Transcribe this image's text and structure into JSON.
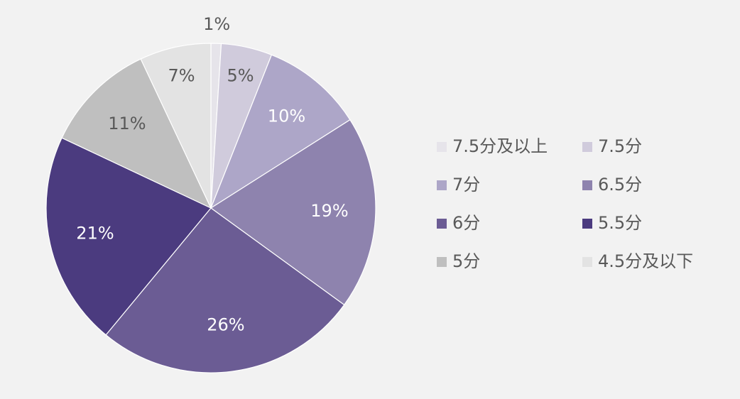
{
  "chart_data": {
    "type": "pie",
    "categories": [
      "7.5分及以上",
      "7.5分",
      "7分",
      "6.5分",
      "6分",
      "5.5分",
      "5分",
      "4.5分及以下"
    ],
    "values": [
      1,
      5,
      10,
      19,
      26,
      21,
      11,
      7
    ],
    "value_labels": [
      "1%",
      "5%",
      "10%",
      "19%",
      "26%",
      "21%",
      "11%",
      "7%"
    ],
    "colors": [
      "#e6e4ea",
      "#d0cbdc",
      "#ada6c8",
      "#8e83ae",
      "#6b5c94",
      "#4b3b7f",
      "#bfbfbf",
      "#e3e3e3"
    ],
    "legend": "right"
  }
}
